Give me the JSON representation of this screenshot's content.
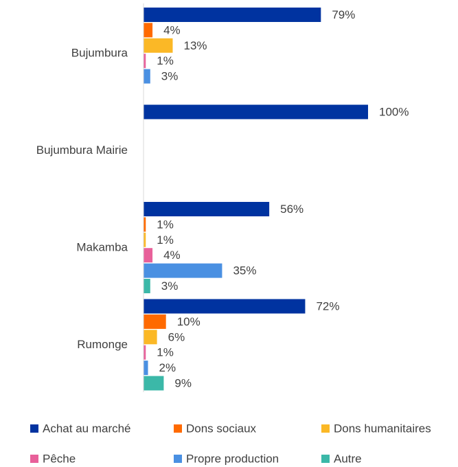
{
  "chart_data": {
    "type": "bar",
    "orientation": "horizontal",
    "categories": [
      "Bujumbura",
      "Bujumbura Mairie",
      "Makamba",
      "Rumonge"
    ],
    "xlim": [
      0,
      100
    ],
    "series": [
      {
        "name": "Achat au marché",
        "color": "#0033a0",
        "values": [
          79,
          100,
          56,
          72
        ],
        "value_labels": [
          "79%",
          "100%",
          "56%",
          "72%"
        ]
      },
      {
        "name": "Dons sociaux",
        "color": "#ff6a00",
        "values": [
          4,
          null,
          1,
          10
        ],
        "value_labels": [
          "4%",
          null,
          "1%",
          "10%"
        ]
      },
      {
        "name": "Dons humanitaires",
        "color": "#fbb826",
        "values": [
          13,
          null,
          1,
          6
        ],
        "value_labels": [
          "13%",
          null,
          "1%",
          "6%"
        ]
      },
      {
        "name": "Pêche",
        "color": "#e8609a",
        "values": [
          1,
          null,
          4,
          1
        ],
        "value_labels": [
          "1%",
          null,
          "4%",
          "1%"
        ]
      },
      {
        "name": "Propre production",
        "color": "#4a90e2",
        "values": [
          3,
          null,
          35,
          2
        ],
        "value_labels": [
          "3%",
          null,
          "35%",
          "2%"
        ]
      },
      {
        "name": "Autre",
        "color": "#3bb8a8",
        "values": [
          null,
          null,
          3,
          9
        ],
        "value_labels": [
          null,
          null,
          "3%",
          "9%"
        ]
      }
    ],
    "legend": "bottom"
  }
}
